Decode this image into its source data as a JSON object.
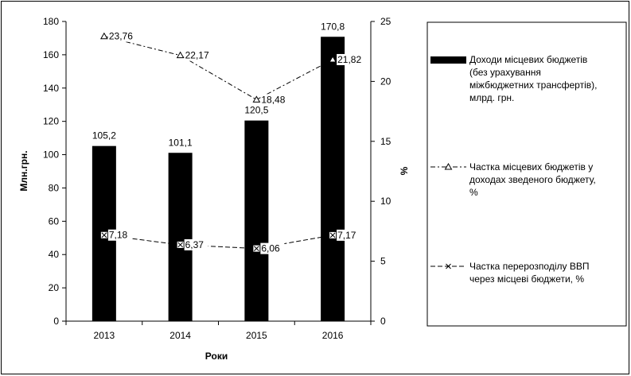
{
  "chart_data": {
    "type": "bar",
    "categories": [
      "2013",
      "2014",
      "2015",
      "2016"
    ],
    "xlabel": "Роки",
    "ylabel": "Млн.грн.",
    "y2label": "%",
    "ylim": [
      0,
      180
    ],
    "y2lim": [
      0,
      25
    ],
    "yticks": [
      0,
      20,
      40,
      60,
      80,
      100,
      120,
      140,
      160,
      180
    ],
    "y2ticks": [
      0,
      5,
      10,
      15,
      20,
      25
    ],
    "grid": false,
    "legend_position": "right",
    "bar_color": "#000000",
    "series": [
      {
        "name": "Доходи місцевих бюджетів (без урахування міжбюджетних трансфертів), млрд. грн.",
        "legend_lines": [
          "Доходи місцевих бюджетів",
          "(без урахування",
          "міжбюджетних трансфертів),",
          "млрд. грн."
        ],
        "kind": "bar",
        "axis": "left",
        "values": [
          105.2,
          101.1,
          120.5,
          170.8
        ],
        "labels": [
          "105,2",
          "101,1",
          "120,5",
          "170,8"
        ]
      },
      {
        "name": "Частка місцевих бюджетів у доходах зведеного бюджету, %",
        "legend_lines": [
          "Частка місцевих бюджетів у",
          "доходах зведеного бюджету,",
          "%"
        ],
        "kind": "line",
        "marker": "triangle",
        "axis": "right",
        "values": [
          23.76,
          22.17,
          18.48,
          21.82
        ],
        "labels": [
          "23,76",
          "22,17",
          "18,48",
          "21,82"
        ]
      },
      {
        "name": "Частка перерозподілу ВВП через місцеві бюджети, %",
        "legend_lines": [
          "Частка перерозподілу ВВП",
          "через місцеві бюджети, %"
        ],
        "kind": "line",
        "marker": "x",
        "axis": "right",
        "values": [
          7.18,
          6.37,
          6.06,
          7.17
        ],
        "labels": [
          "7,18",
          "6,37",
          "6,06",
          "7,17"
        ]
      }
    ]
  }
}
